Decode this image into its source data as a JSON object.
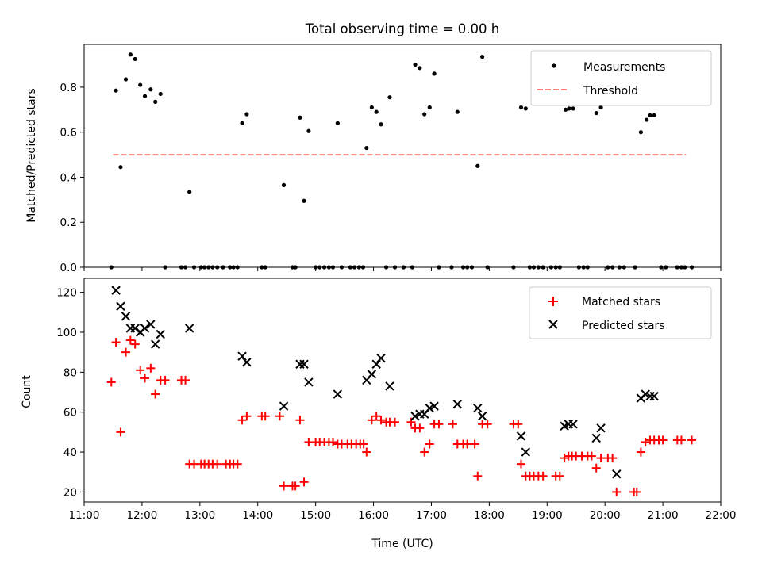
{
  "title": "Total observing time = 0.00 h",
  "colors": {
    "matched": "#ff0000",
    "predicted": "#000000",
    "threshold": "#ff7f7f",
    "measure": "#000000"
  },
  "chart_data": [
    {
      "type": "scatter",
      "ylabel": "Matched/Predicted stars",
      "xlim": [
        11.0,
        22.0
      ],
      "ylim": [
        0.0,
        0.99
      ],
      "yticks": [
        0.0,
        0.2,
        0.4,
        0.6,
        0.8
      ],
      "ytick_labels": [
        "0.0",
        "0.2",
        "0.4",
        "0.6",
        "0.8"
      ],
      "legend": {
        "placement": "top-right",
        "entries": [
          "Measurements",
          "Threshold"
        ]
      },
      "threshold": {
        "name": "Threshold",
        "y": 0.5,
        "x": [
          11.5,
          21.4
        ],
        "style": "dashed"
      },
      "series": [
        {
          "name": "Measurements",
          "points": [
            [
              11.47,
              0.0
            ],
            [
              11.55,
              0.785
            ],
            [
              11.63,
              0.445
            ],
            [
              11.72,
              0.835
            ],
            [
              11.8,
              0.945
            ],
            [
              11.88,
              0.925
            ],
            [
              11.97,
              0.81
            ],
            [
              12.05,
              0.76
            ],
            [
              12.15,
              0.79
            ],
            [
              12.23,
              0.735
            ],
            [
              12.32,
              0.77
            ],
            [
              12.4,
              0.0
            ],
            [
              12.68,
              0.0
            ],
            [
              12.75,
              0.0
            ],
            [
              12.82,
              0.335
            ],
            [
              12.9,
              0.0
            ],
            [
              13.02,
              0.0
            ],
            [
              13.08,
              0.0
            ],
            [
              13.15,
              0.0
            ],
            [
              13.22,
              0.0
            ],
            [
              13.3,
              0.0
            ],
            [
              13.4,
              0.0
            ],
            [
              13.52,
              0.0
            ],
            [
              13.58,
              0.0
            ],
            [
              13.65,
              0.0
            ],
            [
              13.73,
              0.64
            ],
            [
              13.81,
              0.68
            ],
            [
              14.07,
              0.0
            ],
            [
              14.13,
              0.0
            ],
            [
              14.45,
              0.365
            ],
            [
              14.6,
              0.0
            ],
            [
              14.65,
              0.0
            ],
            [
              14.73,
              0.665
            ],
            [
              14.8,
              0.295
            ],
            [
              14.88,
              0.605
            ],
            [
              15.0,
              0.0
            ],
            [
              15.07,
              0.0
            ],
            [
              15.15,
              0.0
            ],
            [
              15.23,
              0.0
            ],
            [
              15.3,
              0.0
            ],
            [
              15.38,
              0.64
            ],
            [
              15.45,
              0.0
            ],
            [
              15.6,
              0.0
            ],
            [
              15.67,
              0.0
            ],
            [
              15.75,
              0.0
            ],
            [
              15.82,
              0.0
            ],
            [
              15.88,
              0.53
            ],
            [
              15.97,
              0.71
            ],
            [
              16.05,
              0.69
            ],
            [
              16.13,
              0.635
            ],
            [
              16.22,
              0.0
            ],
            [
              16.28,
              0.755
            ],
            [
              16.37,
              0.0
            ],
            [
              16.52,
              0.0
            ],
            [
              16.67,
              0.0
            ],
            [
              16.72,
              0.9
            ],
            [
              16.8,
              0.885
            ],
            [
              16.88,
              0.68
            ],
            [
              16.97,
              0.71
            ],
            [
              17.05,
              0.86
            ],
            [
              17.13,
              0.0
            ],
            [
              17.35,
              0.0
            ],
            [
              17.45,
              0.69
            ],
            [
              17.55,
              0.0
            ],
            [
              17.62,
              0.0
            ],
            [
              17.7,
              0.0
            ],
            [
              17.8,
              0.45
            ],
            [
              17.88,
              0.935
            ],
            [
              17.97,
              0.0
            ],
            [
              18.42,
              0.0
            ],
            [
              18.55,
              0.71
            ],
            [
              18.63,
              0.705
            ],
            [
              18.7,
              0.0
            ],
            [
              18.77,
              0.0
            ],
            [
              18.85,
              0.0
            ],
            [
              18.93,
              0.0
            ],
            [
              19.07,
              0.0
            ],
            [
              19.15,
              0.0
            ],
            [
              19.22,
              0.0
            ],
            [
              19.32,
              0.7
            ],
            [
              19.38,
              0.705
            ],
            [
              19.45,
              0.705
            ],
            [
              19.55,
              0.0
            ],
            [
              19.63,
              0.0
            ],
            [
              19.7,
              0.0
            ],
            [
              19.85,
              0.685
            ],
            [
              19.93,
              0.71
            ],
            [
              20.05,
              0.0
            ],
            [
              20.13,
              0.0
            ],
            [
              20.25,
              0.0
            ],
            [
              20.33,
              0.0
            ],
            [
              20.52,
              0.0
            ],
            [
              20.62,
              0.6
            ],
            [
              20.72,
              0.655
            ],
            [
              20.78,
              0.675
            ],
            [
              20.85,
              0.675
            ],
            [
              20.97,
              0.0
            ],
            [
              21.05,
              0.0
            ],
            [
              21.25,
              0.0
            ],
            [
              21.32,
              0.0
            ],
            [
              21.38,
              0.0
            ],
            [
              21.5,
              0.0
            ]
          ]
        }
      ]
    },
    {
      "type": "scatter",
      "xlabel": "Time (UTC)",
      "ylabel": "Count",
      "xlim": [
        11.0,
        22.0
      ],
      "ylim": [
        15,
        127
      ],
      "xticks": [
        11,
        12,
        13,
        14,
        15,
        16,
        17,
        18,
        19,
        20,
        21,
        22
      ],
      "xtick_labels": [
        "11:00",
        "12:00",
        "13:00",
        "14:00",
        "15:00",
        "16:00",
        "17:00",
        "18:00",
        "19:00",
        "20:00",
        "21:00",
        "22:00"
      ],
      "yticks": [
        20,
        40,
        60,
        80,
        100,
        120
      ],
      "ytick_labels": [
        "20",
        "40",
        "60",
        "80",
        "100",
        "120"
      ],
      "legend": {
        "placement": "top-right",
        "entries": [
          "Matched stars",
          "Predicted stars"
        ]
      },
      "series": [
        {
          "name": "Matched stars",
          "marker": "+",
          "points": [
            [
              11.47,
              75
            ],
            [
              11.55,
              95
            ],
            [
              11.63,
              50
            ],
            [
              11.72,
              90
            ],
            [
              11.8,
              96
            ],
            [
              11.88,
              94
            ],
            [
              11.97,
              81
            ],
            [
              12.05,
              77
            ],
            [
              12.15,
              82
            ],
            [
              12.23,
              69
            ],
            [
              12.32,
              76
            ],
            [
              12.4,
              76
            ],
            [
              12.68,
              76
            ],
            [
              12.75,
              76
            ],
            [
              12.82,
              34
            ],
            [
              12.9,
              34
            ],
            [
              13.02,
              34
            ],
            [
              13.08,
              34
            ],
            [
              13.15,
              34
            ],
            [
              13.22,
              34
            ],
            [
              13.3,
              34
            ],
            [
              13.45,
              34
            ],
            [
              13.52,
              34
            ],
            [
              13.58,
              34
            ],
            [
              13.65,
              34
            ],
            [
              13.73,
              56
            ],
            [
              13.81,
              58
            ],
            [
              14.07,
              58
            ],
            [
              14.13,
              58
            ],
            [
              14.38,
              58
            ],
            [
              14.45,
              23
            ],
            [
              14.6,
              23
            ],
            [
              14.65,
              23
            ],
            [
              14.73,
              56
            ],
            [
              14.8,
              25
            ],
            [
              14.88,
              45
            ],
            [
              15.0,
              45
            ],
            [
              15.07,
              45
            ],
            [
              15.15,
              45
            ],
            [
              15.23,
              45
            ],
            [
              15.3,
              45
            ],
            [
              15.38,
              44
            ],
            [
              15.45,
              44
            ],
            [
              15.55,
              44
            ],
            [
              15.62,
              44
            ],
            [
              15.7,
              44
            ],
            [
              15.77,
              44
            ],
            [
              15.83,
              44
            ],
            [
              15.88,
              40
            ],
            [
              15.97,
              56
            ],
            [
              16.05,
              58
            ],
            [
              16.13,
              56
            ],
            [
              16.22,
              55
            ],
            [
              16.28,
              55
            ],
            [
              16.37,
              55
            ],
            [
              16.65,
              55
            ],
            [
              16.72,
              52
            ],
            [
              16.8,
              52
            ],
            [
              16.88,
              40
            ],
            [
              16.97,
              44
            ],
            [
              17.05,
              54
            ],
            [
              17.13,
              54
            ],
            [
              17.37,
              54
            ],
            [
              17.45,
              44
            ],
            [
              17.55,
              44
            ],
            [
              17.62,
              44
            ],
            [
              17.75,
              44
            ],
            [
              17.8,
              28
            ],
            [
              17.88,
              54
            ],
            [
              17.97,
              54
            ],
            [
              18.42,
              54
            ],
            [
              18.5,
              54
            ],
            [
              18.55,
              34
            ],
            [
              18.63,
              28
            ],
            [
              18.7,
              28
            ],
            [
              18.77,
              28
            ],
            [
              18.85,
              28
            ],
            [
              18.93,
              28
            ],
            [
              19.15,
              28
            ],
            [
              19.22,
              28
            ],
            [
              19.3,
              37
            ],
            [
              19.37,
              38
            ],
            [
              19.43,
              38
            ],
            [
              19.5,
              38
            ],
            [
              19.6,
              38
            ],
            [
              19.7,
              38
            ],
            [
              19.77,
              38
            ],
            [
              19.85,
              32
            ],
            [
              19.93,
              37
            ],
            [
              20.05,
              37
            ],
            [
              20.13,
              37
            ],
            [
              20.2,
              20
            ],
            [
              20.5,
              20
            ],
            [
              20.55,
              20
            ],
            [
              20.62,
              40
            ],
            [
              20.7,
              45
            ],
            [
              20.78,
              46
            ],
            [
              20.85,
              46
            ],
            [
              20.93,
              46
            ],
            [
              21.0,
              46
            ],
            [
              21.25,
              46
            ],
            [
              21.32,
              46
            ],
            [
              21.5,
              46
            ]
          ]
        },
        {
          "name": "Predicted stars",
          "marker": "x",
          "points": [
            [
              11.55,
              121
            ],
            [
              11.63,
              113
            ],
            [
              11.72,
              108
            ],
            [
              11.8,
              102
            ],
            [
              11.88,
              102
            ],
            [
              11.97,
              100
            ],
            [
              12.05,
              102
            ],
            [
              12.15,
              104
            ],
            [
              12.23,
              94
            ],
            [
              12.32,
              99
            ],
            [
              12.82,
              102
            ],
            [
              13.73,
              88
            ],
            [
              13.81,
              85
            ],
            [
              14.45,
              63
            ],
            [
              14.73,
              84
            ],
            [
              14.8,
              84
            ],
            [
              14.88,
              75
            ],
            [
              15.38,
              69
            ],
            [
              15.88,
              76
            ],
            [
              15.97,
              79
            ],
            [
              16.05,
              84
            ],
            [
              16.13,
              87
            ],
            [
              16.28,
              73
            ],
            [
              16.72,
              58
            ],
            [
              16.8,
              59
            ],
            [
              16.88,
              59
            ],
            [
              16.97,
              62
            ],
            [
              17.05,
              63
            ],
            [
              17.45,
              64
            ],
            [
              17.8,
              62
            ],
            [
              17.88,
              58
            ],
            [
              18.55,
              48
            ],
            [
              18.63,
              40
            ],
            [
              19.3,
              53
            ],
            [
              19.37,
              54
            ],
            [
              19.45,
              54
            ],
            [
              19.85,
              47
            ],
            [
              19.93,
              52
            ],
            [
              20.2,
              29
            ],
            [
              20.62,
              67
            ],
            [
              20.7,
              69
            ],
            [
              20.78,
              68
            ],
            [
              20.85,
              68
            ]
          ]
        }
      ]
    }
  ]
}
